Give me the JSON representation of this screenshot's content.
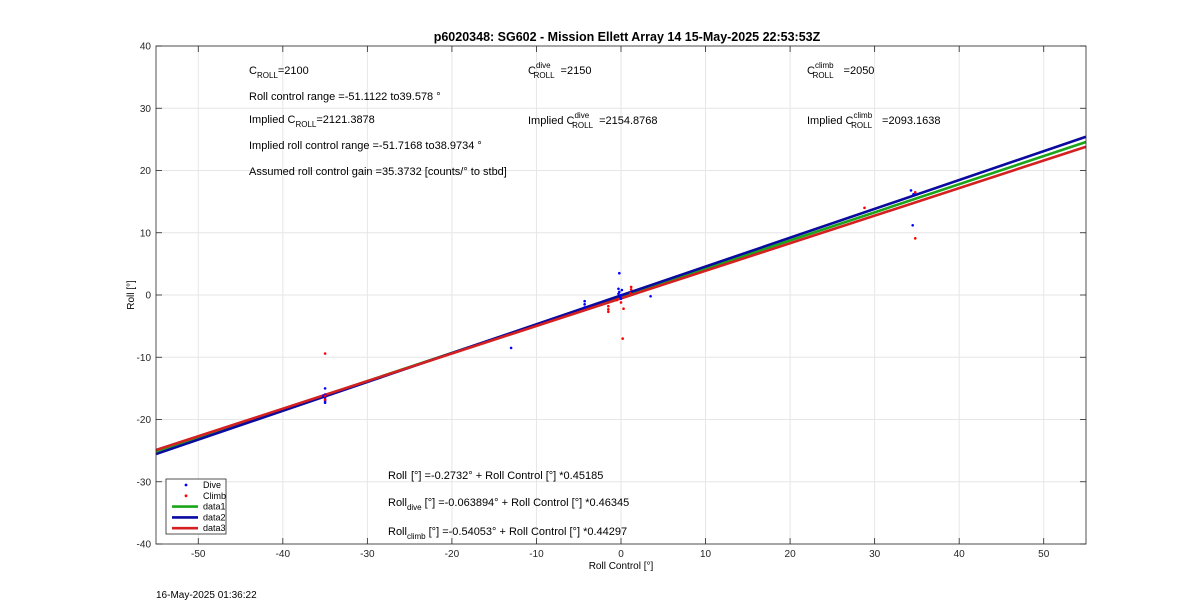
{
  "title": "p6020348: SG602 - Mission Ellett Array 14 15-May-2025 22:53:53Z",
  "footer_timestamp": "16-May-2025 01:36:22",
  "annotations": {
    "c_roll": {
      "base": "C",
      "sub": "ROLL",
      "value": "=2100"
    },
    "c_roll_dive": {
      "base": "C",
      "sup": "dive",
      "sub": "ROLL",
      "value": "=2150"
    },
    "c_roll_climb": {
      "base": "C",
      "sup": "climb",
      "sub": "ROLL",
      "value": "=2050"
    },
    "range_text": "Roll control range =-51.1122 to39.578 °",
    "implied_c_roll": {
      "pre": "Implied C",
      "sub": "ROLL",
      "value": "=2121.3878"
    },
    "implied_c_roll_dive": {
      "pre": "Implied C",
      "sup": "dive",
      "sub": "ROLL",
      "value": "=2154.8768"
    },
    "implied_c_roll_climb": {
      "pre": "Implied C",
      "sup": "climb",
      "sub": "ROLL",
      "value": "=2093.1638"
    },
    "implied_range_text": "Implied roll control range =-51.7168 to38.9734 °",
    "gain_text": "Assumed roll control gain =35.3732 [counts/° to stbd]",
    "eq_all": {
      "pre": "Roll",
      "sub": "",
      "rest": "[°] =-0.2732° + Roll Control [°] *0.45185"
    },
    "eq_dive": {
      "pre": "Roll",
      "sub": "dive",
      "rest": "[°] =-0.063894° + Roll Control [°] *0.46345"
    },
    "eq_climb": {
      "pre": "Roll",
      "sub": "climb",
      "rest": "[°] =-0.54053° + Roll Control [°] *0.44297"
    }
  },
  "colors": {
    "dive": "#0000ff",
    "climb": "#ff0000",
    "data1": "#1aa51a",
    "data2": "#0a0aa0",
    "data3": "#d42020",
    "grid": "#e6e6e6"
  },
  "chart_data": {
    "type": "scatter",
    "title": "p6020348: SG602 - Mission Ellett Array 14 15-May-2025 22:53:53Z",
    "xlabel": "Roll Control [°]",
    "ylabel": "Roll [°]",
    "xlim": [
      -55,
      55
    ],
    "ylim": [
      -40,
      40
    ],
    "xticks": [
      -50,
      -40,
      -30,
      -20,
      -10,
      0,
      10,
      20,
      30,
      40,
      50
    ],
    "yticks": [
      -40,
      -30,
      -20,
      -10,
      0,
      10,
      20,
      30,
      40
    ],
    "grid": true,
    "legend_position": "bottom-left",
    "series": [
      {
        "name": "Dive",
        "kind": "points",
        "color_key": "dive",
        "points": [
          [
            -35,
            -15
          ],
          [
            -35,
            -16
          ],
          [
            -35,
            -16.5
          ],
          [
            -35,
            -17
          ],
          [
            -35,
            -17.3
          ],
          [
            -35.2,
            -16.2
          ],
          [
            -13,
            -8.5
          ],
          [
            -4.3,
            -1
          ],
          [
            -4.3,
            -1.5
          ],
          [
            -4.3,
            -2
          ],
          [
            -0.2,
            3.5
          ],
          [
            -0.3,
            1
          ],
          [
            -0.2,
            0.5
          ],
          [
            0,
            0
          ],
          [
            -0.1,
            -0.3
          ],
          [
            0.1,
            0.8
          ],
          [
            0,
            -0.6
          ],
          [
            -0.3,
            0.2
          ],
          [
            3.5,
            -0.2
          ],
          [
            34.3,
            16.8
          ],
          [
            34.6,
            16.2
          ],
          [
            34.5,
            11.2
          ]
        ]
      },
      {
        "name": "Climb",
        "kind": "points",
        "color_key": "climb",
        "points": [
          [
            -35,
            -9.4
          ],
          [
            -35,
            -16.2
          ],
          [
            -35,
            -16.8
          ],
          [
            -1.5,
            -1.8
          ],
          [
            -1.5,
            -2.3
          ],
          [
            -1.5,
            -2.7
          ],
          [
            -0.5,
            -0.8
          ],
          [
            0,
            -1.2
          ],
          [
            0.3,
            -2.2
          ],
          [
            0.2,
            -7
          ],
          [
            1.2,
            1.3
          ],
          [
            1.2,
            0.9
          ],
          [
            1.1,
            0.3
          ],
          [
            28.8,
            14
          ],
          [
            34.8,
            16.5
          ],
          [
            34.8,
            9.1
          ]
        ]
      },
      {
        "name": "data1",
        "kind": "line",
        "color_key": "data1",
        "intercept": -0.2732,
        "slope": 0.45185
      },
      {
        "name": "data2",
        "kind": "line",
        "color_key": "data2",
        "intercept": -0.063894,
        "slope": 0.46345
      },
      {
        "name": "data3",
        "kind": "line",
        "color_key": "data3",
        "intercept": -0.54053,
        "slope": 0.44297
      }
    ]
  }
}
